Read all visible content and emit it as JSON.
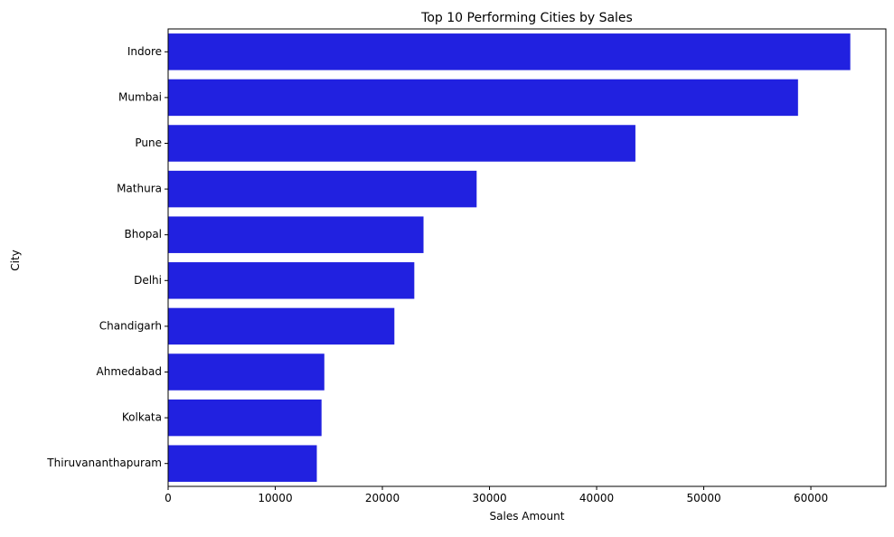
{
  "chart_data": {
    "type": "bar",
    "orientation": "horizontal",
    "title": "Top 10 Performing Cities by Sales",
    "xlabel": "Sales Amount",
    "ylabel": "City",
    "categories": [
      "Indore",
      "Mumbai",
      "Pune",
      "Mathura",
      "Bhopal",
      "Delhi",
      "Chandigarh",
      "Ahmedabad",
      "Kolkata",
      "Thiruvananthapuram"
    ],
    "values": [
      63680,
      58800,
      43620,
      28800,
      23840,
      22980,
      21120,
      14580,
      14320,
      13880
    ],
    "xlim": [
      0,
      67000
    ],
    "xticks": [
      0,
      10000,
      20000,
      30000,
      40000,
      50000,
      60000
    ],
    "xtick_labels": [
      "0",
      "10000",
      "20000",
      "30000",
      "40000",
      "50000",
      "60000"
    ],
    "bar_color": "#2121e0",
    "grid": false,
    "legend": false
  }
}
